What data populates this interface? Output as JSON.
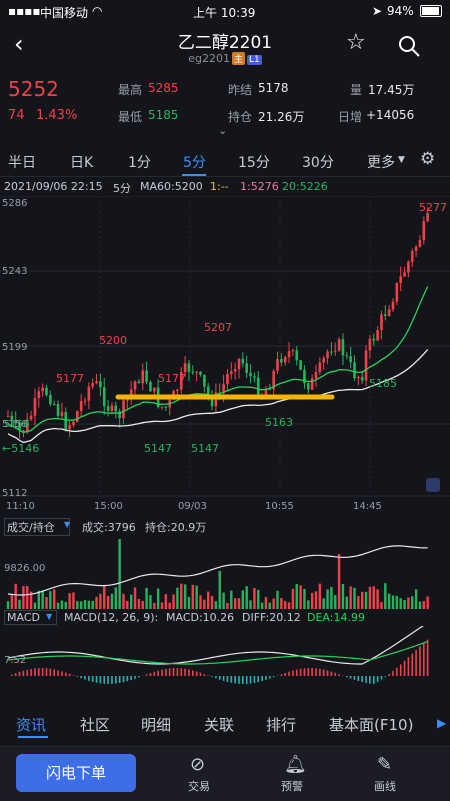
{
  "status": {
    "carrier": "中国移动",
    "time": "上午 10:39",
    "battery": "94%"
  },
  "header": {
    "title": "乙二醇2201",
    "code": "eg2201",
    "tag_main": "主",
    "tag_l1": "L1"
  },
  "quote": {
    "price": "5252",
    "change": "74",
    "change_pct": "1.43%",
    "high_label": "最高",
    "high": "5285",
    "low_label": "最低",
    "low": "5185",
    "prev_settle_label": "昨结",
    "prev_settle": "5178",
    "open_interest_label": "持仓",
    "open_interest": "21.26万",
    "volume_label": "量",
    "volume": "17.45万",
    "daily_add_label": "日增",
    "daily_add": "+14056"
  },
  "period_tabs": [
    "半日",
    "日K",
    "1分",
    "5分",
    "15分",
    "30分",
    "更多"
  ],
  "active_period": "5分",
  "chart_info": {
    "datetime": "2021/09/06 22:15",
    "period": "5分",
    "ma60": "MA60:5200",
    "ma1": "1:--",
    "ma_l": "1:5276",
    "ma20": "20:5226",
    "y_ticks": [
      "5286",
      "5243",
      "5199",
      "5156",
      "5112"
    ],
    "x_ticks": [
      "11:10",
      "15:00",
      "09/03",
      "10:55",
      "14:45"
    ],
    "annotations": {
      "high_right": "5277",
      "peak1": "5200",
      "peak2": "5207",
      "left1": "5177",
      "mid1": "5177",
      "low1": "5147",
      "low2": "5147",
      "low3": "5163",
      "low4": "5185",
      "left_arrow": "←5146",
      "left_edge": "5156"
    }
  },
  "volume_panel": {
    "selector": "成交/持仓",
    "volume": "成交:3796",
    "oi": "持仓:20.9万",
    "axis": "9826.00"
  },
  "macd_panel": {
    "selector": "MACD",
    "params": "MACD(12, 26, 9):",
    "macd": "MACD:10.26",
    "diff": "DIFF:20.12",
    "dea": "DEA:14.99",
    "axis": "7.52"
  },
  "bottom_tabs": [
    "资讯",
    "社区",
    "明细",
    "关联",
    "排行",
    "基本面(F10)"
  ],
  "active_bottom": "资讯",
  "action_bar": {
    "flash_order": "闪电下单",
    "trade": "交易",
    "alert": "预警",
    "draw": "画线"
  },
  "colors": {
    "up": "#f0414a",
    "down": "#27b35d",
    "accent": "#3d8ef5",
    "bg": "#14151b",
    "highlight_line": "#f5b400"
  }
}
